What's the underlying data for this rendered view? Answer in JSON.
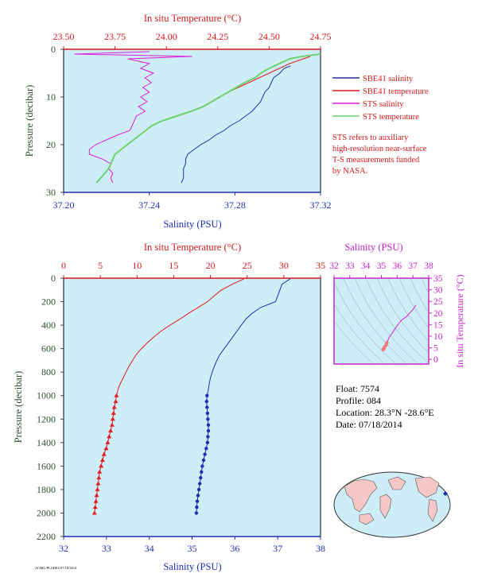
{
  "colors": {
    "salinity": "#1f2fb4",
    "temperature": "#e01c1c",
    "sts_salinity": "#e01ce0",
    "sts_temperature": "#6fd06f",
    "plot_bg": "#cdeef7",
    "salinity_axis": "#1f2fb4",
    "temperature_axis": "#d8191c",
    "pressure_axis": "#2e4d2e",
    "ts_axis": "#cc22cc",
    "note": "#d8191c"
  },
  "chart_data": [
    {
      "id": "surface_profile",
      "type": "line",
      "title": "",
      "top_axis_label": "In situ Temperature (°C)",
      "bottom_axis_label": "Salinity (PSU)",
      "ylabel": "Pressure (decibar)",
      "temperature_ticks": [
        "23.50",
        "23.75",
        "24.00",
        "24.25",
        "24.50",
        "24.75"
      ],
      "temperature_lim": [
        23.5,
        24.75
      ],
      "salinity_ticks": [
        "37.20",
        "37.24",
        "37.28",
        "37.32"
      ],
      "salinity_lim": [
        37.2,
        37.32
      ],
      "pressure_ticks": [
        "0",
        "10",
        "20",
        "30"
      ],
      "pressure_lim": [
        0,
        30
      ],
      "legend": [
        "SBE41 salinity",
        "SBE41 temperature",
        "STS salinity",
        "STS temperature"
      ],
      "note": [
        "STS refers to auxiliary",
        "high-resolution near-surface",
        "T-S measurements funded",
        "by NASA."
      ],
      "series": [
        {
          "name": "SBE41 salinity",
          "axis": "salinity",
          "pressure": [
            3.5,
            4,
            5,
            6,
            7,
            8,
            9,
            10,
            11,
            12,
            13,
            14,
            15,
            16,
            17,
            18,
            19,
            20,
            21,
            22,
            23,
            24,
            25,
            26,
            27,
            28
          ],
          "values": [
            37.306,
            37.303,
            37.301,
            37.298,
            37.297,
            37.296,
            37.294,
            37.293,
            37.292,
            37.29,
            37.288,
            37.285,
            37.282,
            37.278,
            37.275,
            37.271,
            37.268,
            37.264,
            37.261,
            37.258,
            37.257,
            37.257,
            37.256,
            37.256,
            37.256,
            37.255
          ]
        },
        {
          "name": "SBE41 temperature",
          "axis": "temperature",
          "pressure": [
            1.5,
            3,
            4,
            5,
            6,
            7,
            8,
            9,
            10,
            11,
            12,
            13,
            14,
            15,
            16,
            17,
            18,
            19,
            20,
            21,
            22,
            23,
            24,
            25,
            26,
            27,
            28
          ],
          "values": [
            24.7,
            24.6,
            24.55,
            24.5,
            24.45,
            24.4,
            24.35,
            24.3,
            24.26,
            24.22,
            24.18,
            24.12,
            24.05,
            23.98,
            23.93,
            23.9,
            23.87,
            23.84,
            23.81,
            23.78,
            23.75,
            23.74,
            23.73,
            23.72,
            23.7,
            23.68,
            23.66
          ]
        },
        {
          "name": "STS salinity",
          "axis": "salinity",
          "pressure": [
            0.5,
            1,
            1.5,
            2,
            3,
            4,
            5,
            6,
            7,
            8,
            9,
            10,
            11,
            12,
            13,
            14,
            15,
            16,
            17,
            18,
            19,
            20,
            21,
            22,
            23,
            24,
            25,
            26,
            27,
            28
          ],
          "values": [
            37.24,
            37.205,
            37.26,
            37.23,
            37.24,
            37.236,
            37.242,
            37.238,
            37.241,
            37.237,
            37.24,
            37.236,
            37.239,
            37.235,
            37.238,
            37.234,
            37.233,
            37.232,
            37.231,
            37.225,
            37.22,
            37.215,
            37.212,
            37.212,
            37.218,
            37.222,
            37.221,
            37.223,
            37.222,
            37.223
          ]
        },
        {
          "name": "STS temperature",
          "axis": "temperature",
          "pressure": [
            1,
            1.5,
            2,
            3,
            4,
            5,
            6,
            7,
            8,
            9,
            10,
            11,
            12,
            13,
            14,
            15,
            16,
            17,
            18,
            19,
            20,
            21,
            22,
            23,
            24,
            25,
            26,
            27,
            28
          ],
          "values": [
            24.75,
            24.66,
            24.6,
            24.55,
            24.5,
            24.46,
            24.43,
            24.38,
            24.34,
            24.3,
            24.26,
            24.22,
            24.18,
            24.12,
            24.05,
            23.98,
            23.93,
            23.9,
            23.87,
            23.84,
            23.81,
            23.78,
            23.75,
            23.74,
            23.73,
            23.72,
            23.7,
            23.68,
            23.66
          ]
        }
      ]
    },
    {
      "id": "full_profile",
      "type": "line",
      "title": "",
      "top_axis_label": "In situ Temperature (°C)",
      "bottom_axis_label": "Salinity (PSU)",
      "ylabel": "Pressure (decibar)",
      "temperature_ticks": [
        "0",
        "5",
        "10",
        "15",
        "20",
        "25",
        "30",
        "35"
      ],
      "temperature_lim": [
        0,
        35
      ],
      "salinity_ticks": [
        "32",
        "33",
        "34",
        "35",
        "36",
        "37",
        "38"
      ],
      "salinity_lim": [
        32,
        38
      ],
      "pressure_ticks": [
        "0",
        "200",
        "400",
        "600",
        "800",
        "1000",
        "1200",
        "1400",
        "1600",
        "1800",
        "2000",
        "2200"
      ],
      "pressure_lim": [
        0,
        2200
      ],
      "series": [
        {
          "name": "SBE41 salinity",
          "axis": "salinity",
          "pressure": [
            5,
            50,
            100,
            150,
            200,
            250,
            300,
            350,
            400,
            450,
            500,
            550,
            600,
            650,
            700,
            750,
            800,
            850,
            900,
            950,
            1000,
            1050,
            1100,
            1150,
            1200,
            1250,
            1300,
            1350,
            1400,
            1450,
            1500,
            1550,
            1600,
            1650,
            1700,
            1750,
            1800,
            1850,
            1900,
            1950,
            2000
          ],
          "values": [
            37.3,
            37.1,
            37.05,
            37.0,
            36.95,
            36.6,
            36.4,
            36.25,
            36.15,
            36.05,
            35.95,
            35.85,
            35.75,
            35.65,
            35.58,
            35.52,
            35.47,
            35.43,
            35.4,
            35.38,
            35.35,
            35.34,
            35.35,
            35.36,
            35.37,
            35.38,
            35.38,
            35.37,
            35.36,
            35.33,
            35.3,
            35.27,
            35.24,
            35.22,
            35.2,
            35.18,
            35.16,
            35.14,
            35.12,
            35.11,
            35.1
          ]
        },
        {
          "name": "SBE41 temperature",
          "axis": "temperature",
          "pressure": [
            5,
            50,
            100,
            150,
            200,
            250,
            300,
            350,
            400,
            450,
            500,
            550,
            600,
            650,
            700,
            750,
            800,
            850,
            900,
            950,
            1000,
            1050,
            1100,
            1150,
            1200,
            1250,
            1300,
            1350,
            1400,
            1450,
            1500,
            1550,
            1600,
            1650,
            1700,
            1750,
            1800,
            1850,
            1900,
            1950,
            2000
          ],
          "values": [
            24.6,
            23.0,
            21.5,
            20.5,
            19.6,
            18.3,
            17.0,
            15.8,
            14.5,
            13.3,
            12.3,
            11.4,
            10.6,
            9.9,
            9.4,
            8.9,
            8.5,
            8.1,
            7.7,
            7.4,
            7.2,
            7.1,
            6.9,
            6.8,
            6.7,
            6.6,
            6.4,
            6.2,
            6.0,
            5.8,
            5.5,
            5.3,
            5.1,
            4.9,
            4.8,
            4.7,
            4.6,
            4.5,
            4.4,
            4.3,
            4.2
          ]
        }
      ]
    },
    {
      "id": "ts_diagram",
      "type": "scatter",
      "title": "",
      "top_axis_label": "Salinity (PSU)",
      "right_axis_label": "In situ Temperature (°C)",
      "salinity_ticks": [
        "32",
        "33",
        "34",
        "35",
        "36",
        "37",
        "38"
      ],
      "salinity_lim": [
        32,
        38
      ],
      "temperature_ticks": [
        "0",
        "5",
        "10",
        "15",
        "20",
        "25",
        "30",
        "35"
      ],
      "temperature_lim": [
        -2,
        35
      ],
      "series": [
        {
          "name": "T-S",
          "salinity": [
            35.1,
            35.15,
            35.2,
            35.3,
            35.35,
            35.4,
            35.5,
            35.7,
            35.9,
            36.1,
            36.3,
            36.6,
            37.0,
            37.2
          ],
          "temperature": [
            4.2,
            4.6,
            5.3,
            6.2,
            7.2,
            8.0,
            9.5,
            11.5,
            13.5,
            15.5,
            17.0,
            18.5,
            21.5,
            23.5
          ]
        }
      ]
    }
  ],
  "info": {
    "float": "Float:  7574",
    "profile": "Profile:  084",
    "location": "Location:  28.3°N  -28.6°E",
    "date": "Date:  07/18/2014"
  },
  "footer_code": "AOML/PLGRP4 07/18/2014"
}
